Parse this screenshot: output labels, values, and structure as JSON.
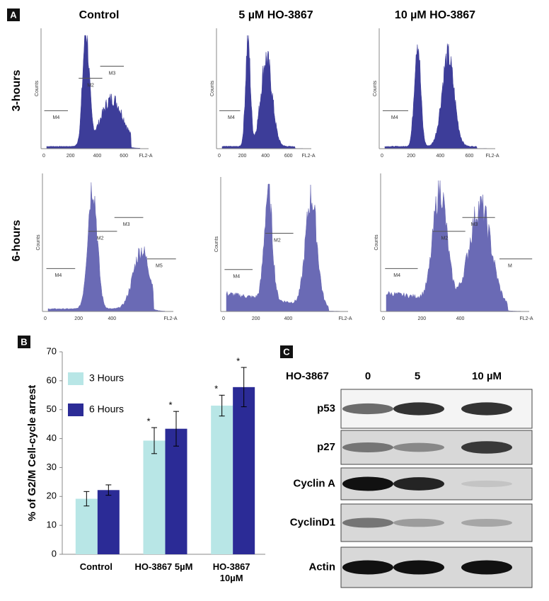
{
  "panel_a": {
    "label": "A",
    "columns": [
      "Control",
      "5 µM HO-3867",
      "10 µM HO-3867"
    ],
    "rows": [
      "3-hours",
      "6-hours"
    ],
    "y_label": "Counts",
    "x_label": "FL2-A",
    "x_ticks": [
      "0",
      "200",
      "400",
      "600"
    ],
    "plots": [
      [
        {
          "markers": [
            "M4",
            "M2",
            "M3"
          ]
        },
        {
          "markers": [
            "M4"
          ]
        },
        {
          "markers": [
            "M4"
          ]
        }
      ],
      [
        {
          "markers": [
            "M4",
            "M2",
            "M3",
            "M5"
          ]
        },
        {
          "markers": [
            "M4",
            "M2"
          ]
        },
        {
          "markers": [
            "M4",
            "M2",
            "M3",
            "M"
          ]
        }
      ]
    ]
  },
  "chart_data": {
    "type": "bar",
    "label": "B",
    "y_label": "% of G2/M Cell-cycle arrest",
    "categories": [
      "Control",
      "HO-3867 5µM",
      "HO-3867 10µM"
    ],
    "series": [
      {
        "name": "3 Hours",
        "color": "#b8e6e6",
        "values": [
          19.2,
          39.3,
          51.4
        ],
        "errors": [
          2.5,
          4.5,
          3.6
        ],
        "markers": [
          null,
          "*",
          "*"
        ]
      },
      {
        "name": "6 Hours",
        "color": "#2b2b96",
        "values": [
          22.2,
          43.4,
          57.8
        ],
        "errors": [
          1.8,
          6.0,
          6.8
        ],
        "markers": [
          null,
          "*",
          "*"
        ]
      }
    ],
    "ylim": [
      0,
      70
    ],
    "yticks": [
      0,
      10,
      20,
      30,
      40,
      50,
      60,
      70
    ],
    "legend": "top-left"
  },
  "panel_c": {
    "label": "C",
    "treatment": "HO-3867",
    "lanes": [
      "0",
      "5",
      "10 µM"
    ],
    "proteins": [
      "p53",
      "p27",
      "Cyclin A",
      "CyclinD1",
      "Actin"
    ]
  }
}
